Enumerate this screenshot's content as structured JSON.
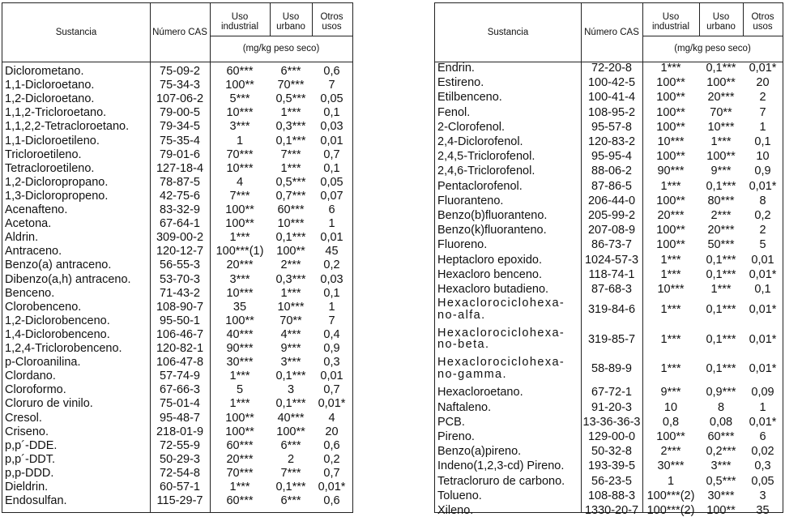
{
  "header": {
    "sustancia": "Sustancia",
    "cas": "Número CAS",
    "industrial": "Uso\nindustrial",
    "urbano": "Uso\nurbano",
    "otros": "Otros\nusos",
    "units": "(mg/kg peso seco)"
  },
  "left_rows": [
    [
      "Diclorometano.",
      "75-09-2",
      "60***",
      "6***",
      "0,6"
    ],
    [
      "1,1-Dicloroetano.",
      "75-34-3",
      "100**",
      "70***",
      "7"
    ],
    [
      "1,2-Dicloroetano.",
      "107-06-2",
      "5***",
      "0,5***",
      "0,05"
    ],
    [
      "1,1,2-Tricloroetano.",
      "79-00-5",
      "10***",
      "1***",
      "0,1"
    ],
    [
      "1,1,2,2-Tetracloroetano.",
      "79-34-5",
      "3***",
      "0,3***",
      "0,03"
    ],
    [
      "1,1-Dicloroetileno.",
      "75-35-4",
      "1",
      "0,1***",
      "0,01"
    ],
    [
      "Tricloroetileno.",
      "79-01-6",
      "70***",
      "7***",
      "0,7"
    ],
    [
      "Tetracloroetileno.",
      "127-18-4",
      "10***",
      "1***",
      "0,1"
    ],
    [
      "1,2-Dicloropropano.",
      "78-87-5",
      "4",
      "0,5***",
      "0,05"
    ],
    [
      "1,3-Dicloropropeno.",
      "42-75-6",
      "7***",
      "0,7***",
      "0,07"
    ],
    [
      "Acenafteno.",
      "83-32-9",
      "100**",
      "60***",
      "6"
    ],
    [
      "Acetona.",
      "67-64-1",
      "100**",
      "10***",
      "1"
    ],
    [
      "Aldrin.",
      "309-00-2",
      "1***",
      "0,1***",
      "0,01"
    ],
    [
      "Antraceno.",
      "120-12-7",
      "100***(1)",
      "100**",
      "45"
    ],
    [
      "Benzo(a) antraceno.",
      "56-55-3",
      "20***",
      "2***",
      "0,2"
    ],
    [
      "Dibenzo(a,h) antraceno.",
      "53-70-3",
      "3***",
      "0,3***",
      "0,03"
    ],
    [
      "Benceno.",
      "71-43-2",
      "10***",
      "1***",
      "0,1"
    ],
    [
      "Clorobenceno.",
      "108-90-7",
      "35",
      "10***",
      "1"
    ],
    [
      "1,2-Diclorobenceno.",
      "95-50-1",
      "100**",
      "70**",
      "7"
    ],
    [
      "1,4-Diclorobenceno.",
      "106-46-7",
      "40***",
      "4***",
      "0,4"
    ],
    [
      "1,2,4-Triclorobenceno.",
      "120-82-1",
      "90***",
      "9***",
      "0,9"
    ],
    [
      "p-Cloroanilina.",
      "106-47-8",
      "30***",
      "3***",
      "0,3"
    ],
    [
      "Clordano.",
      "57-74-9",
      "1***",
      "0,1***",
      "0,01"
    ],
    [
      "Cloroformo.",
      "67-66-3",
      "5",
      "3",
      "0,7"
    ],
    [
      "Cloruro de vinilo.",
      "75-01-4",
      "1***",
      "0,1***",
      "0,01*"
    ],
    [
      "Cresol.",
      "95-48-7",
      "100**",
      "40***",
      "4"
    ],
    [
      "Criseno.",
      "218-01-9",
      "100**",
      "100**",
      "20"
    ],
    [
      "p,p´-DDE.",
      "72-55-9",
      "60***",
      "6***",
      "0,6"
    ],
    [
      "p,p´-DDT.",
      "50-29-3",
      "20***",
      "2",
      "0,2"
    ],
    [
      "p,p-DDD.",
      "72-54-8",
      "70***",
      "7***",
      "0,7"
    ],
    [
      "Dieldrin.",
      "60-57-1",
      "1***",
      "0,1***",
      "0,01*"
    ],
    [
      "Endosulfan.",
      "115-29-7",
      "60***",
      "6***",
      "0,6"
    ]
  ],
  "right_rows": [
    [
      "Endrin.",
      "72-20-8",
      "1***",
      "0,1***",
      "0,01*"
    ],
    [
      "Estireno.",
      "100-42-5",
      "100**",
      "100**",
      "20"
    ],
    [
      "Etilbenceno.",
      "100-41-4",
      "100**",
      "20***",
      "2"
    ],
    [
      "Fenol.",
      "108-95-2",
      "100**",
      "70**",
      "7"
    ],
    [
      "2-Clorofenol.",
      "95-57-8",
      "100**",
      "10***",
      "1"
    ],
    [
      "2,4-Diclorofenol.",
      "120-83-2",
      "10***",
      "1***",
      "0,1"
    ],
    [
      "2,4,5-Triclorofenol.",
      "95-95-4",
      "100**",
      "100**",
      "10"
    ],
    [
      "2,4,6-Triclorofenol.",
      "88-06-2",
      "90***",
      "9***",
      "0,9"
    ],
    [
      "Pentaclorofenol.",
      "87-86-5",
      "1***",
      "0,1***",
      "0,01*"
    ],
    [
      "Fluoranteno.",
      "206-44-0",
      "100**",
      "80***",
      "8"
    ],
    [
      "Benzo(b)fluoranteno.",
      "205-99-2",
      "20***",
      "2***",
      "0,2"
    ],
    [
      "Benzo(k)fluoranteno.",
      "207-08-9",
      "100**",
      "20***",
      "2"
    ],
    [
      "Fluoreno.",
      "86-73-7",
      "100**",
      "50***",
      "5"
    ],
    [
      "Heptacloro epoxido.",
      "1024-57-3",
      "1***",
      "0,1***",
      "0,01"
    ],
    [
      "Hexacloro benceno.",
      "118-74-1",
      "1***",
      "0,1***",
      "0,01*"
    ],
    [
      "Hexacloro butadieno.",
      "87-68-3",
      "10***",
      "1***",
      "0,1"
    ],
    [
      "Hexaclorociclohexa-no-alfa.",
      "319-84-6",
      "1***",
      "0,1***",
      "0,01*"
    ],
    [
      "Hexaclorociclohexa-no-beta.",
      "319-85-7",
      "1***",
      "0,1***",
      "0,01*"
    ],
    [
      "Hexaclorociclohexa-no-gamma.",
      "58-89-9",
      "1***",
      "0,1***",
      "0,01*"
    ],
    [
      "Hexacloroetano.",
      "67-72-1",
      "9***",
      "0,9***",
      "0,09"
    ],
    [
      "Naftaleno.",
      "91-20-3",
      "10",
      "8",
      "1"
    ],
    [
      "PCB.",
      "13-36-36-3",
      "0,8",
      "0,08",
      "0,01*"
    ],
    [
      "Pireno.",
      "129-00-0",
      "100**",
      "60***",
      "6"
    ],
    [
      "Benzo(a)pireno.",
      "50-32-8",
      "2***",
      "0,2***",
      "0,02"
    ],
    [
      "Indeno(1,2,3-cd) Pireno.",
      "193-39-5",
      "30***",
      "3***",
      "0,3"
    ],
    [
      "Tetracloruro de carbono.",
      "56-23-5",
      "1",
      "0,5***",
      "0,05"
    ],
    [
      "Tolueno.",
      "108-88-3",
      "100***(2)",
      "30***",
      "3"
    ],
    [
      "Xileno.",
      "1330-20-7",
      "100***(2)",
      "100**",
      "35"
    ]
  ]
}
